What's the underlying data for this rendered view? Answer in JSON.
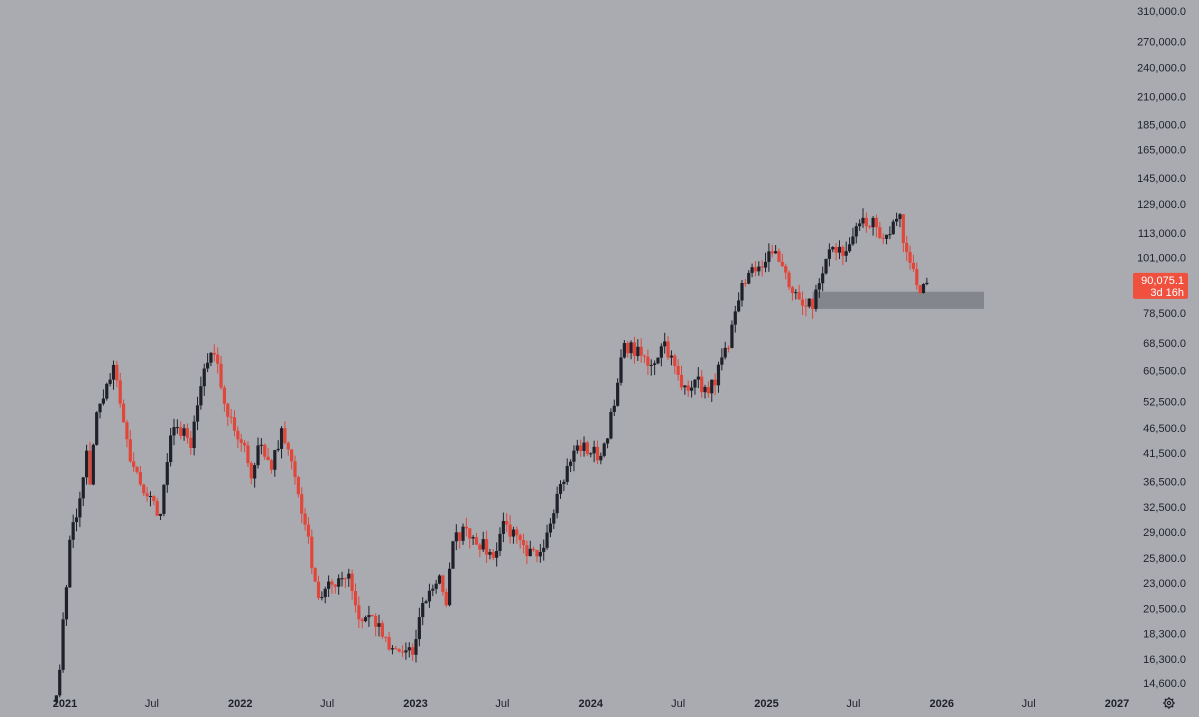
{
  "colors": {
    "background": "#a9abb1",
    "up_candle": "#1e2129",
    "down_candle": "#e0463a",
    "zone": "#7d7f86",
    "price_badge": "#f0503e",
    "axis_text": "#1e2129"
  },
  "y_axis": {
    "scale": "log",
    "ticks": [
      "310,000.0",
      "270,000.0",
      "240,000.0",
      "210,000.0",
      "185,000.0",
      "165,000.0",
      "145,000.0",
      "129,000.0",
      "113,000.0",
      "101,000.0",
      "78,500.0",
      "68,500.0",
      "60,500.0",
      "52,500.0",
      "46,500.0",
      "41,500.0",
      "36,500.0",
      "32,500.0",
      "29,000.0",
      "25,800.0",
      "23,000.0",
      "20,500.0",
      "18,300.0",
      "16,300.0",
      "14,600.0"
    ]
  },
  "x_axis": {
    "ticks": [
      {
        "label": "2021",
        "date": "2021-01-01",
        "year": true
      },
      {
        "label": "Jul",
        "date": "2021-07-01",
        "year": false
      },
      {
        "label": "2022",
        "date": "2022-01-01",
        "year": true
      },
      {
        "label": "Jul",
        "date": "2022-07-01",
        "year": false
      },
      {
        "label": "2023",
        "date": "2023-01-01",
        "year": true
      },
      {
        "label": "Jul",
        "date": "2023-07-01",
        "year": false
      },
      {
        "label": "2024",
        "date": "2024-01-01",
        "year": true
      },
      {
        "label": "Jul",
        "date": "2024-07-01",
        "year": false
      },
      {
        "label": "2025",
        "date": "2025-01-01",
        "year": true
      },
      {
        "label": "Jul",
        "date": "2025-07-01",
        "year": false
      },
      {
        "label": "2026",
        "date": "2026-01-01",
        "year": true
      },
      {
        "label": "Jul",
        "date": "2026-07-01",
        "year": false
      },
      {
        "label": "2027",
        "date": "2027-01-01",
        "year": true
      }
    ]
  },
  "current_price": {
    "value": 90075.1,
    "label": "90,075.1",
    "countdown": "3d 16h"
  },
  "settings_icon": "gear-icon",
  "chart_data": {
    "type": "candlestick",
    "title": "",
    "y_scale": "log",
    "grid": false,
    "interval": "weekly",
    "zone": {
      "start": "2025-04-07",
      "end": "2026-03-30",
      "low": 80000,
      "high": 86500
    },
    "anchors": [
      [
        "2020-12-14",
        13800
      ],
      [
        "2020-12-21",
        15500
      ],
      [
        "2020-12-28",
        19500
      ],
      [
        "2021-01-11",
        28000
      ],
      [
        "2021-01-25",
        31000
      ],
      [
        "2021-02-15",
        42000
      ],
      [
        "2021-02-22",
        36000
      ],
      [
        "2021-03-08",
        50000
      ],
      [
        "2021-04-05",
        58000
      ],
      [
        "2021-04-12",
        62000
      ],
      [
        "2021-04-26",
        52000
      ],
      [
        "2021-05-17",
        40000
      ],
      [
        "2021-06-07",
        36000
      ],
      [
        "2021-07-19",
        31500
      ],
      [
        "2021-08-09",
        45000
      ],
      [
        "2021-09-06",
        46500
      ],
      [
        "2021-09-20",
        42500
      ],
      [
        "2021-10-18",
        61000
      ],
      [
        "2021-11-08",
        65000
      ],
      [
        "2021-12-06",
        49000
      ],
      [
        "2022-01-10",
        43000
      ],
      [
        "2022-01-24",
        37000
      ],
      [
        "2022-02-07",
        43000
      ],
      [
        "2022-03-07",
        38500
      ],
      [
        "2022-03-28",
        46500
      ],
      [
        "2022-04-18",
        40000
      ],
      [
        "2022-05-16",
        30000
      ],
      [
        "2022-06-13",
        21500
      ],
      [
        "2022-07-25",
        23500
      ],
      [
        "2022-08-15",
        24000
      ],
      [
        "2022-09-05",
        19500
      ],
      [
        "2022-10-03",
        19800
      ],
      [
        "2022-11-07",
        17000
      ],
      [
        "2022-12-26",
        16600
      ],
      [
        "2023-01-16",
        21000
      ],
      [
        "2023-02-20",
        23800
      ],
      [
        "2023-03-06",
        20800
      ],
      [
        "2023-03-20",
        27800
      ],
      [
        "2023-04-17",
        29500
      ],
      [
        "2023-06-12",
        25800
      ],
      [
        "2023-07-03",
        30500
      ],
      [
        "2023-08-21",
        26000
      ],
      [
        "2023-09-18",
        26500
      ],
      [
        "2023-10-23",
        34500
      ],
      [
        "2023-12-04",
        43000
      ],
      [
        "2024-01-22",
        41000
      ],
      [
        "2024-02-19",
        51500
      ],
      [
        "2024-03-11",
        68500
      ],
      [
        "2024-05-06",
        62000
      ],
      [
        "2024-06-03",
        69000
      ],
      [
        "2024-07-08",
        56000
      ],
      [
        "2024-08-05",
        58000
      ],
      [
        "2024-09-02",
        54500
      ],
      [
        "2024-10-14",
        67000
      ],
      [
        "2024-11-11",
        90000
      ],
      [
        "2024-12-16",
        97000
      ],
      [
        "2025-01-20",
        104000
      ],
      [
        "2025-02-24",
        86000
      ],
      [
        "2025-04-07",
        80000
      ],
      [
        "2025-04-28",
        94000
      ],
      [
        "2025-05-19",
        106000
      ],
      [
        "2025-06-16",
        104000
      ],
      [
        "2025-07-14",
        118000
      ],
      [
        "2025-08-04",
        116000
      ],
      [
        "2025-08-11",
        121000
      ],
      [
        "2025-08-18",
        116000
      ],
      [
        "2025-09-01",
        110000
      ],
      [
        "2025-10-06",
        123000
      ],
      [
        "2025-10-13",
        108000
      ],
      [
        "2025-11-17",
        86000
      ],
      [
        "2025-12-01",
        90075.1
      ]
    ]
  }
}
